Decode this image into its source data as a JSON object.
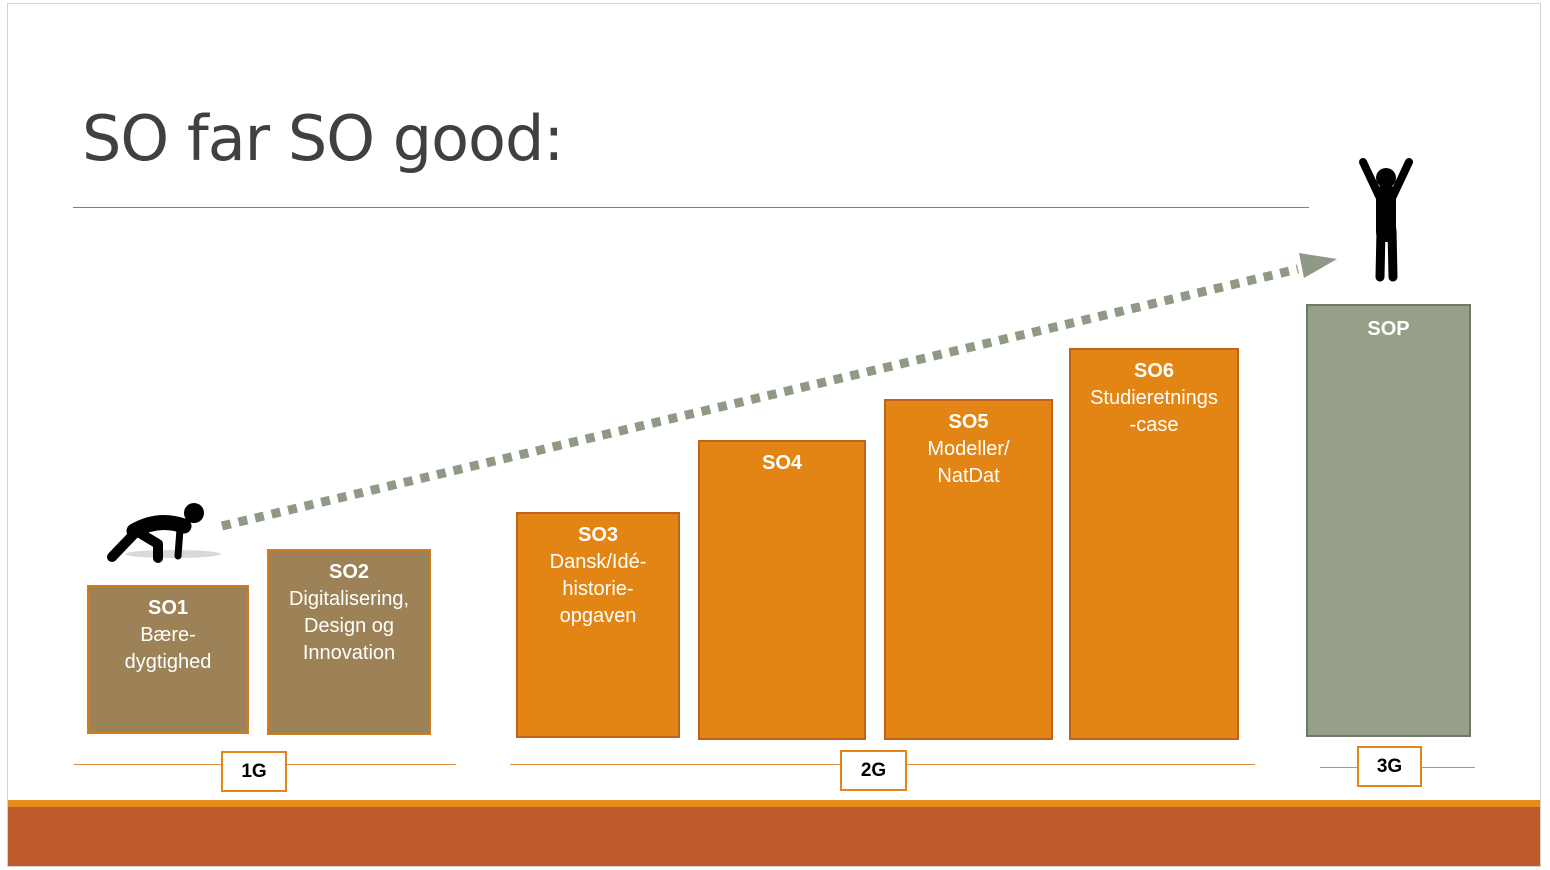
{
  "slide": {
    "title": "SO far SO good:"
  },
  "colors": {
    "brown": "#9c8256",
    "brown_border": "#d27c20",
    "orange": "#e38514",
    "orange_border": "#c0621c",
    "sage": "#96a088",
    "sage_border": "#6f7868",
    "arrow": "#8e9a86",
    "figure": "#000000",
    "grade_line": "#e28a3c",
    "footer_thin": "#e88b1d",
    "footer_band": "#bf5a2b"
  },
  "blocks": [
    {
      "code": "SO1",
      "desc": "Bære-\ndygtighed",
      "color": "brown"
    },
    {
      "code": "SO2",
      "desc": "Digitalisering,\nDesign og\nInnovation",
      "color": "brown"
    },
    {
      "code": "SO3",
      "desc": "Dansk/Idé-\nhistorie-\nopgaven",
      "color": "orange"
    },
    {
      "code": "SO4",
      "desc": "",
      "color": "orange"
    },
    {
      "code": "SO5",
      "desc": "Modeller/\nNatDat",
      "color": "orange"
    },
    {
      "code": "SO6",
      "desc": "Studieretnings\n-case",
      "color": "orange"
    },
    {
      "code": "SOP",
      "desc": "",
      "color": "sage"
    }
  ],
  "grades": [
    {
      "label": "1G"
    },
    {
      "label": "2G"
    },
    {
      "label": "3G"
    }
  ],
  "icons": {
    "start": "crouching-runner-icon",
    "finish": "cheering-person-icon",
    "progress": "dashed-arrow"
  }
}
